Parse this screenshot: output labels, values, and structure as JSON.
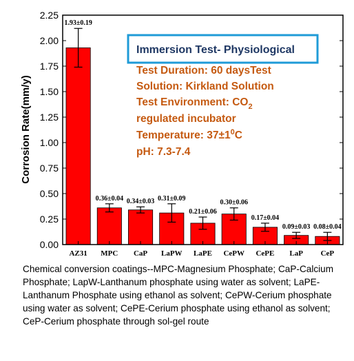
{
  "chart_data": {
    "type": "bar",
    "categories": [
      "AZ31",
      "MPC",
      "CaP",
      "LaPW",
      "LaPE",
      "CePW",
      "CePE",
      "LaP",
      "CeP"
    ],
    "values": [
      1.93,
      0.36,
      0.34,
      0.31,
      0.21,
      0.3,
      0.17,
      0.09,
      0.08
    ],
    "errors": [
      0.19,
      0.04,
      0.03,
      0.09,
      0.06,
      0.06,
      0.04,
      0.03,
      0.04
    ],
    "data_labels": [
      "1.93±0.19",
      "0.36±0.04",
      "0.34±0.03",
      "0.31±0.09",
      "0.21±0.06",
      "0.30±0.06",
      "0.17±0.04",
      "0.09±0.03",
      "0.08±0.04"
    ],
    "ylabel": "Corrosion Rate(mm/y)",
    "ylim": [
      0,
      2.25
    ],
    "yticks": [
      "0.00",
      "0.25",
      "0.50",
      "0.75",
      "1.00",
      "1.25",
      "1.50",
      "1.75",
      "2.00",
      "2.25"
    ],
    "bar_color": "#ff0000",
    "grid": false
  },
  "info_box": {
    "title": "Immersion Test- Physiological",
    "border_color": "#1f9bd7",
    "title_color": "#1f3864"
  },
  "info_lines": {
    "duration": "Test Duration: 60 daysTest",
    "solution": "Solution: Kirkland Solution",
    "environment_prefix": "Test Environment: CO",
    "environment_sub": "2",
    "incubator": "regulated incubator",
    "temperature_prefix": "Temperature: 37±1",
    "temperature_sup": "0",
    "temperature_suffix": "C",
    "ph": "pH: 7.3-7.4",
    "color": "#c55a11"
  },
  "caption": "Chemical conversion coatings--MPC-Magnesium Phosphate; CaP-Calcium Phosphate; LapW-Lanthanum phosphate using water as solvent; LaPE-Lanthanum Phosphate using ethanol as solvent; CePW-Cerium phosphate using water as solvent; CePE-Cerium phosphate using ethanol as solvent; CeP-Cerium phosphate through sol-gel route"
}
